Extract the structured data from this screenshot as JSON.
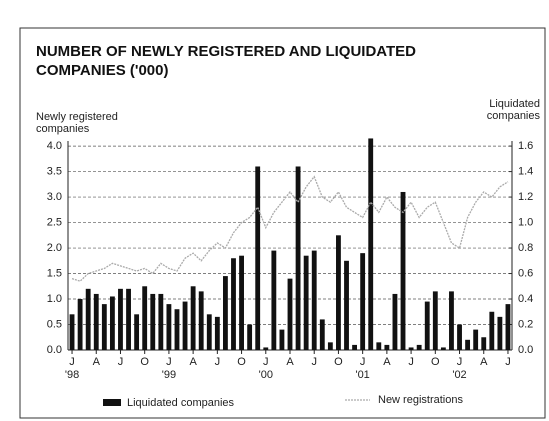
{
  "chart_data": {
    "type": "bar_line",
    "title": [
      "NUMBER OF NEWLY REGISTERED AND LIQUIDATED",
      "COMPANIES ('000)"
    ],
    "y_label": [
      "Newly registered",
      "companies"
    ],
    "y2_label": [
      "Liquidated",
      "companies"
    ],
    "categories": [
      "J",
      null,
      null,
      "A",
      null,
      null,
      "J",
      null,
      null,
      "O",
      null,
      null,
      "J",
      null,
      null,
      "A",
      null,
      null,
      "J",
      null,
      null,
      "O",
      null,
      null,
      "J",
      null,
      null,
      "A",
      null,
      null,
      "J",
      null,
      null,
      "O",
      null,
      null,
      "J",
      null,
      null,
      "A",
      null,
      null,
      "J",
      null,
      null,
      "O",
      null,
      null,
      "J",
      null,
      null,
      "A",
      null,
      null,
      "J"
    ],
    "category_years": [
      "'98",
      null,
      null,
      null,
      null,
      null,
      null,
      null,
      null,
      null,
      null,
      null,
      "'99",
      null,
      null,
      null,
      null,
      null,
      null,
      null,
      null,
      null,
      null,
      null,
      "'00",
      null,
      null,
      null,
      null,
      null,
      null,
      null,
      null,
      null,
      null,
      null,
      "'01",
      null,
      null,
      null,
      null,
      null,
      null,
      null,
      null,
      null,
      null,
      null,
      "'02",
      null,
      null,
      null,
      null,
      null,
      null
    ],
    "series": [
      {
        "name": "Liquidated companies",
        "color": "#111111",
        "axis": "y2",
        "values": [
          0.28,
          0.4,
          0.48,
          0.44,
          0.36,
          0.42,
          0.48,
          0.48,
          0.28,
          0.5,
          0.44,
          0.44,
          0.36,
          0.32,
          0.38,
          0.5,
          0.46,
          0.28,
          0.26,
          0.58,
          0.72,
          0.74,
          0.2,
          1.44,
          0.02,
          0.78,
          0.16,
          0.56,
          1.44,
          0.74,
          0.78,
          0.24,
          0.06,
          0.9,
          0.7,
          0.04,
          0.76,
          1.66,
          0.06,
          0.04,
          0.44,
          1.24,
          0.02,
          0.04,
          0.38,
          0.46,
          0.02,
          0.46,
          0.2,
          0.08,
          0.16,
          0.1,
          0.3,
          0.26,
          0.36
        ]
      },
      {
        "name": "New registrations",
        "color": "#aaaaaa",
        "values": [
          1.4,
          1.35,
          1.5,
          1.55,
          1.6,
          1.7,
          1.65,
          1.6,
          1.55,
          1.6,
          1.5,
          1.7,
          1.6,
          1.55,
          1.8,
          1.9,
          1.75,
          1.95,
          2.1,
          2.0,
          2.3,
          2.5,
          2.6,
          2.8,
          2.4,
          2.7,
          2.9,
          3.1,
          2.9,
          3.2,
          3.4,
          3.0,
          2.9,
          3.1,
          2.8,
          2.7,
          2.6,
          2.9,
          2.7,
          3.0,
          2.8,
          2.7,
          2.9,
          2.6,
          2.8,
          2.9,
          2.5,
          2.1,
          2.0,
          2.6,
          2.9,
          3.1,
          3.0,
          3.2,
          3.3
        ]
      }
    ],
    "ylim": [
      0,
      4.1
    ],
    "yticks": [
      {
        "value": 0,
        "label": "0.0"
      },
      0.5,
      {
        "value": 1,
        "label": "1.0"
      },
      1.5,
      {
        "value": 2,
        "label": "2.0"
      },
      2.5,
      {
        "value": 3,
        "label": "3.0"
      },
      3.5,
      {
        "value": 4,
        "label": "4.0"
      }
    ],
    "y2lim": [
      0,
      1.64
    ],
    "y2ticks": [
      {
        "value": 0,
        "label": "0.0"
      },
      0.2,
      0.4,
      0.6,
      0.8,
      {
        "value": 1,
        "label": "1.0"
      },
      1.2,
      1.4,
      1.6
    ],
    "grid": true
  }
}
